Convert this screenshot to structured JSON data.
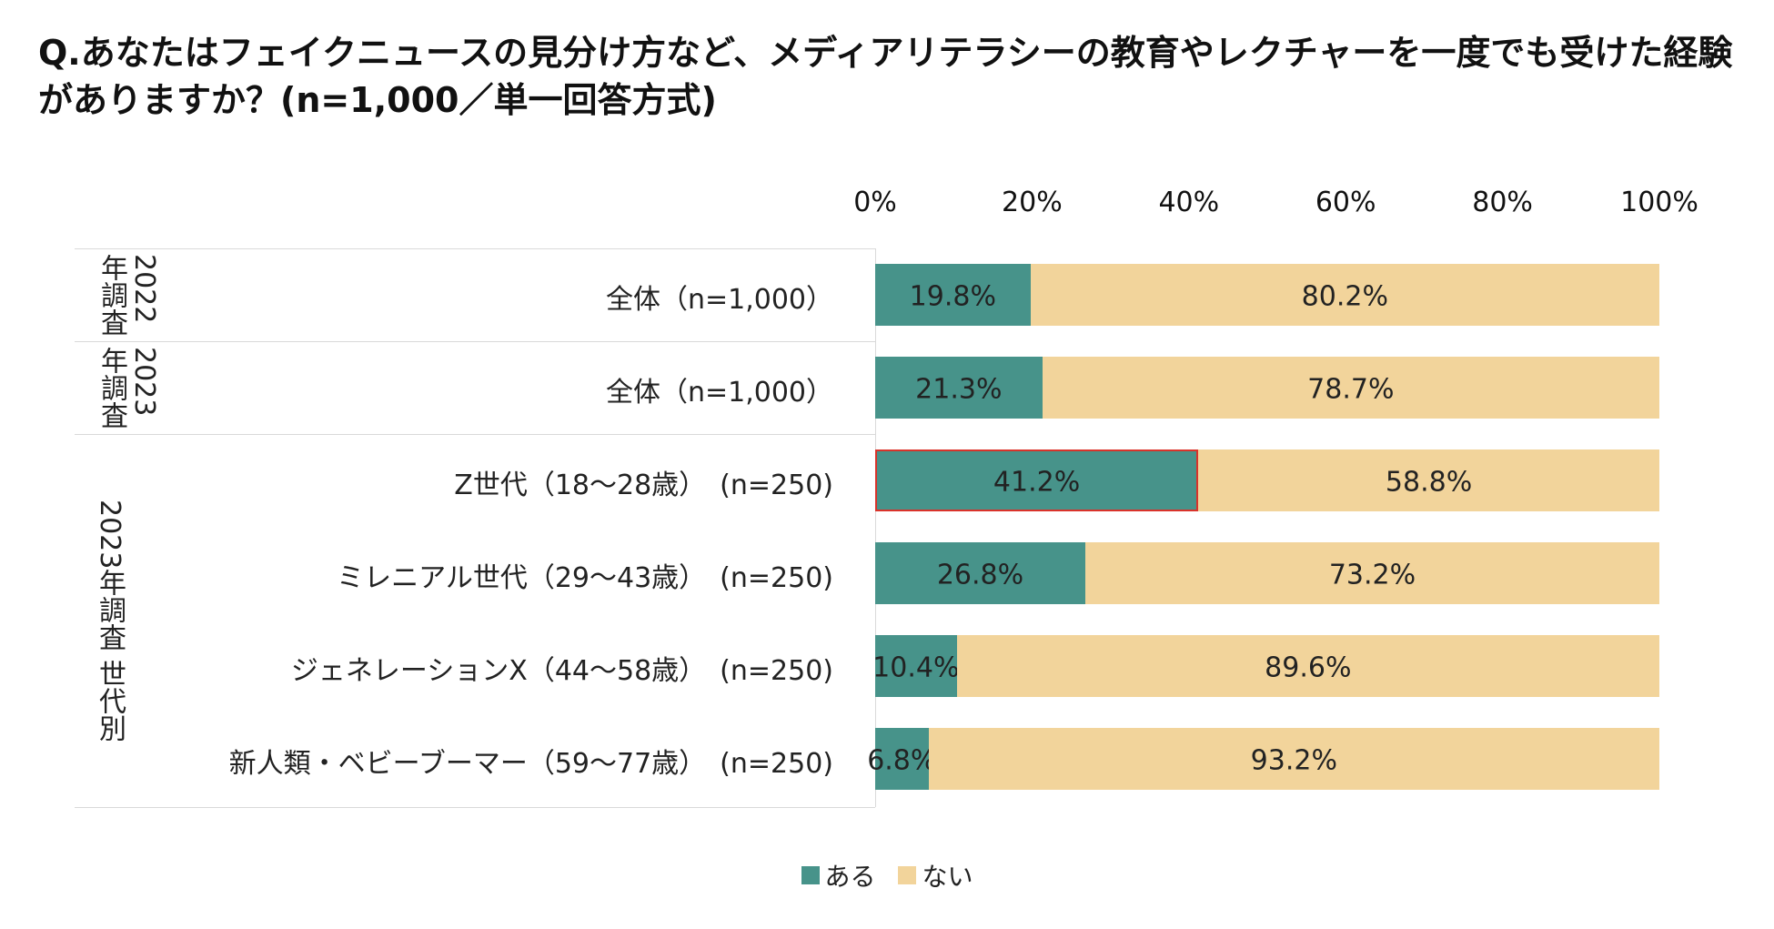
{
  "title": "Q.あなたはフェイクニュースの見分け方など、メディアリテラシーの教育やレクチャーを一度でも受けた経験がありますか？(n=1,000／単一回答方式)",
  "groups": [
    {
      "label": "2022\n年調査"
    },
    {
      "label": "2023\n年調査"
    },
    {
      "label": "2023年調査 世代別"
    }
  ],
  "colors": {
    "aru": "#47938a",
    "nai": "#f2d49b",
    "highlight": "#d9332b"
  },
  "chart_data": {
    "type": "bar",
    "orientation": "horizontal",
    "stacked": true,
    "percent": true,
    "xlim": [
      0,
      100
    ],
    "tick_labels": [
      "0%",
      "20%",
      "40%",
      "60%",
      "80%",
      "100%"
    ],
    "categories": [
      "全体（n=1,000）",
      "全体（n=1,000）",
      "Z世代（18～28歳）　(n=250)",
      "ミレニアル世代（29～43歳）　(n=250)",
      "ジェネレーションX（44～58歳）　(n=250)",
      "新人類・ベビーブーマー（59～77歳）　(n=250)"
    ],
    "series": [
      {
        "name": "ある",
        "values": [
          19.8,
          21.3,
          41.2,
          26.8,
          10.4,
          6.8
        ],
        "labels": [
          "19.8%",
          "21.3%",
          "41.2%",
          "26.8%",
          "10.4%",
          "6.8%"
        ]
      },
      {
        "name": "ない",
        "values": [
          80.2,
          78.7,
          58.8,
          73.2,
          89.6,
          93.2
        ],
        "labels": [
          "80.2%",
          "78.7%",
          "58.8%",
          "73.2%",
          "89.6%",
          "93.2%"
        ]
      }
    ],
    "highlighted": {
      "category_index": 2,
      "series_index": 0
    },
    "legend": {
      "position": "bottom",
      "items": [
        "ある",
        "ない"
      ]
    }
  }
}
